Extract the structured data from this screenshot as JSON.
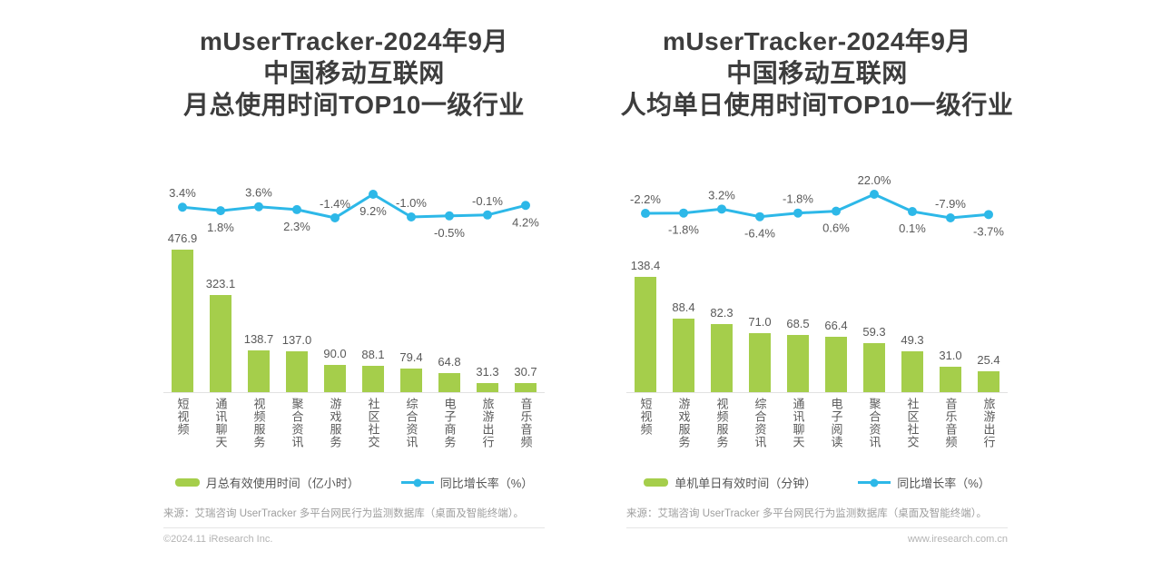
{
  "page": {
    "background": "#ffffff"
  },
  "colors": {
    "bar": "#a5ce4b",
    "line": "#2db8e8",
    "title_text": "#3d3d3d",
    "label_text": "#595959",
    "muted_text": "#9e9e9e",
    "faint_text": "#b3b3b3"
  },
  "chart_data": [
    {
      "type": "bar+line",
      "title_lines": [
        "mUserTracker-2024年9月",
        "中国移动互联网",
        "月总使用时间TOP10一级行业"
      ],
      "categories": [
        "短视频",
        "通讯聊天",
        "视频服务",
        "聚合资讯",
        "游戏服务",
        "社区社交",
        "综合资讯",
        "电子商务",
        "旅游出行",
        "音乐音频"
      ],
      "series": [
        {
          "name": "月总有效使用时间（亿小时）",
          "type": "bar",
          "values": [
            476.9,
            323.1,
            138.7,
            137.0,
            90.0,
            88.1,
            79.4,
            64.8,
            31.3,
            30.7
          ]
        },
        {
          "name": "同比增长率（%）",
          "type": "line",
          "values": [
            3.4,
            1.8,
            3.6,
            2.3,
            -1.4,
            9.2,
            -1.0,
            -0.5,
            -0.1,
            4.2
          ]
        }
      ],
      "ylim": [
        0,
        500
      ],
      "grid": false,
      "legend_position": "bottom",
      "source": "来源：艾瑞咨询 UserTracker 多平台网民行为监测数据库（桌面及智能终端）。",
      "footnote": "©2024.11 iResearch Inc.",
      "footnote_align": "left"
    },
    {
      "type": "bar+line",
      "title_lines": [
        "mUserTracker-2024年9月",
        "中国移动互联网",
        "人均单日使用时间TOP10一级行业"
      ],
      "categories": [
        "短视频",
        "游戏服务",
        "视频服务",
        "综合资讯",
        "通讯聊天",
        "电子阅读",
        "聚合资讯",
        "社区社交",
        "音乐音频",
        "旅游出行"
      ],
      "series": [
        {
          "name": "单机单日有效时间（分钟）",
          "type": "bar",
          "values": [
            138.4,
            88.4,
            82.3,
            71.0,
            68.5,
            66.4,
            59.3,
            49.3,
            31.0,
            25.4
          ]
        },
        {
          "name": "同比增长率（%）",
          "type": "line",
          "values": [
            -2.2,
            -1.8,
            3.2,
            -6.4,
            -1.8,
            0.6,
            22.0,
            0.1,
            -7.9,
            -3.7
          ]
        }
      ],
      "ylim": [
        0,
        180
      ],
      "grid": false,
      "legend_position": "bottom",
      "source": "来源：艾瑞咨询 UserTracker 多平台网民行为监测数据库（桌面及智能终端）。",
      "footnote": "www.iresearch.com.cn",
      "footnote_align": "right"
    }
  ]
}
